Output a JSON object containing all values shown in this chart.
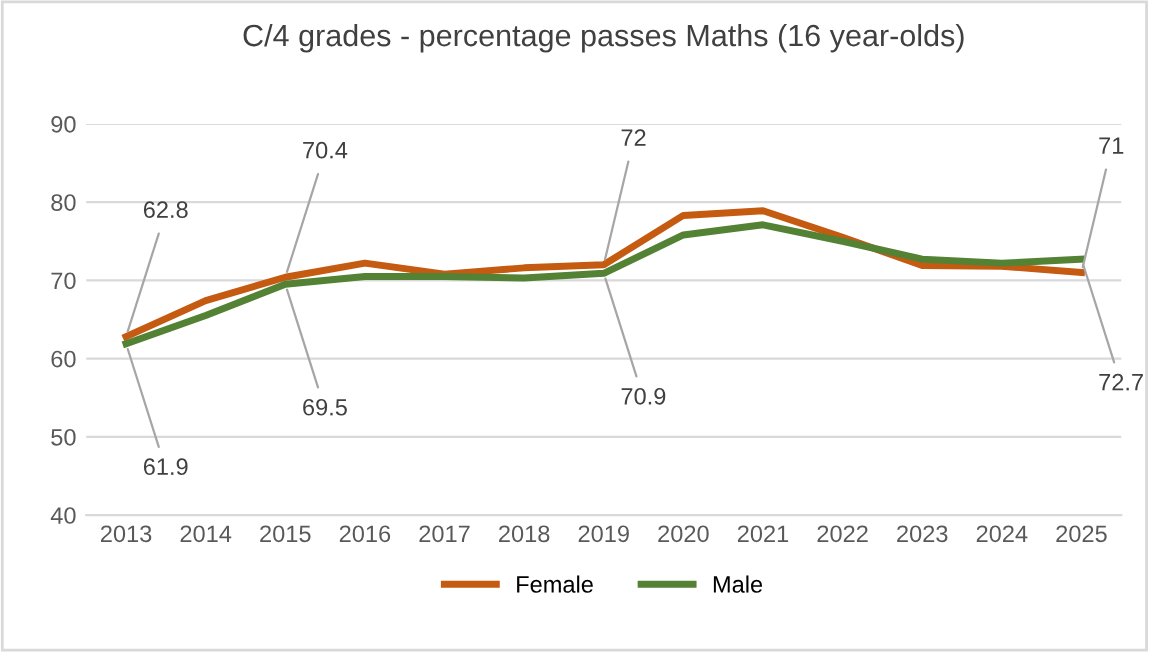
{
  "chart_data": {
    "type": "line",
    "title": "C/4 grades - percentage passes Maths (16 year-olds)",
    "categories": [
      "2013",
      "2014",
      "2015",
      "2016",
      "2017",
      "2018",
      "2019",
      "2020",
      "2021",
      "2022",
      "2023",
      "2024",
      "2025"
    ],
    "series": [
      {
        "name": "Female",
        "color": "#c55a11",
        "values": [
          62.8,
          67.4,
          70.4,
          72.2,
          70.8,
          71.6,
          72,
          78.3,
          78.9,
          75.5,
          71.9,
          71.8,
          71
        ],
        "value_labels": [
          "62.8",
          null,
          "70.4",
          null,
          null,
          null,
          "72",
          null,
          null,
          null,
          null,
          null,
          "71"
        ]
      },
      {
        "name": "Male",
        "color": "#548235",
        "values": [
          61.9,
          65.5,
          69.5,
          70.5,
          70.5,
          70.3,
          70.9,
          75.8,
          77.1,
          75.0,
          72.7,
          72.2,
          72.7
        ],
        "value_labels": [
          "61.9",
          null,
          "69.5",
          null,
          null,
          null,
          "70.9",
          null,
          null,
          null,
          null,
          null,
          "72.7"
        ]
      }
    ],
    "ylim": [
      40,
      90
    ],
    "yticks": [
      40,
      50,
      60,
      70,
      80,
      90
    ],
    "grid": "y",
    "legend": "bottom",
    "marker": "none",
    "line_style": "solid"
  }
}
